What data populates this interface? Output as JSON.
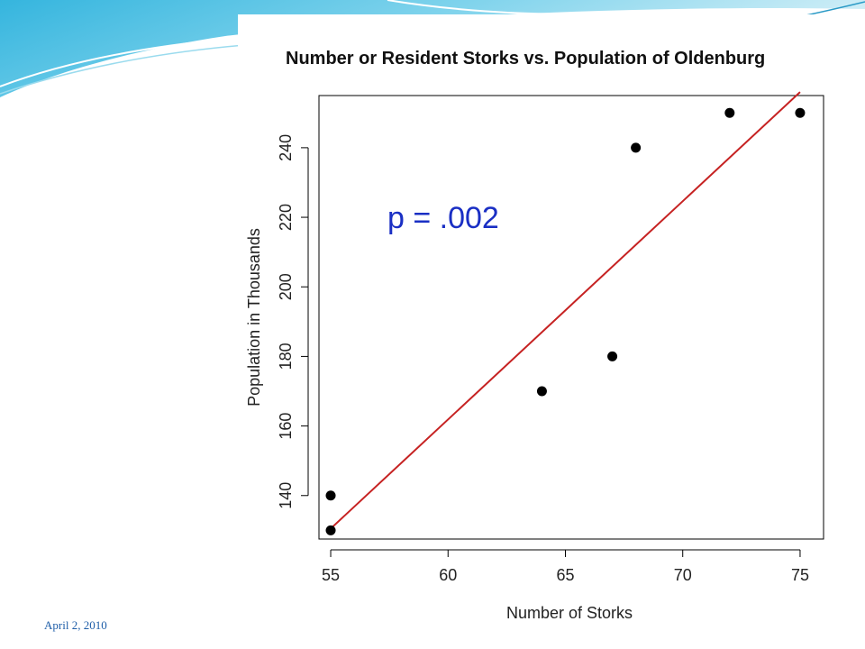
{
  "slide": {
    "date": "April 2, 2010"
  },
  "colors": {
    "title": "#111111",
    "points": "#000000",
    "fit_line": "#c62222",
    "annotation": "#1a2fc4",
    "footer": "#1f5ea8",
    "banner": "#3cb4dc"
  },
  "chart_data": {
    "type": "scatter",
    "title": "Number or Resident Storks vs. Population of Oldenburg",
    "xlabel": "Number of Storks",
    "ylabel": "Population in Thousands",
    "xlim": [
      54.5,
      76
    ],
    "ylim": [
      127.5,
      255
    ],
    "xticks": [
      55,
      60,
      65,
      70,
      75
    ],
    "yticks": [
      140,
      160,
      180,
      200,
      220,
      240
    ],
    "points": [
      {
        "x": 55,
        "y": 130
      },
      {
        "x": 55,
        "y": 140
      },
      {
        "x": 64,
        "y": 170
      },
      {
        "x": 67,
        "y": 180
      },
      {
        "x": 68,
        "y": 240
      },
      {
        "x": 72,
        "y": 250
      },
      {
        "x": 75,
        "y": 250
      }
    ],
    "fit_line": {
      "x": [
        55,
        75
      ],
      "y": [
        130.5,
        256
      ]
    },
    "annotation": "p = .002",
    "grid": false,
    "legend": "none"
  }
}
